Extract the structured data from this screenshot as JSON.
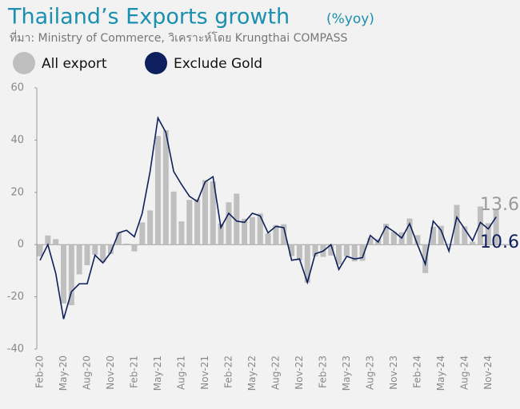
{
  "chart_data": {
    "type": "bar_line",
    "title": "Thailand’s Exports growth",
    "title_unit": "(%yoy)",
    "source": "ที่มา: Ministry of Commerce, วิเคราะห์โดย Krungthai COMPASS",
    "categories": [
      "Feb-20",
      null,
      null,
      "May-20",
      null,
      null,
      "Aug-20",
      null,
      null,
      "Nov-20",
      null,
      null,
      "Feb-21",
      null,
      null,
      "May-21",
      null,
      null,
      "Aug-21",
      null,
      null,
      "Nov-21",
      null,
      null,
      "Feb-22",
      null,
      null,
      "May-22",
      null,
      null,
      "Aug-22",
      null,
      null,
      "Nov-22",
      null,
      null,
      "Feb-23",
      null,
      null,
      "May-23",
      null,
      null,
      "Aug-23",
      null,
      null,
      "Nov-23",
      null,
      null,
      "Feb-24",
      null,
      null,
      "May-24",
      null,
      null,
      "Aug-24",
      null,
      null,
      "Nov-24",
      null
    ],
    "series": [
      {
        "name": "All export",
        "color": "#bfbfbf",
        "kind": "bar",
        "values": [
          -4.5,
          3.5,
          2.1,
          -22.5,
          -23.2,
          -11.4,
          -7.9,
          -3.9,
          -6.7,
          -3.6,
          4.7,
          0.4,
          -2.6,
          8.5,
          13.1,
          41.6,
          43.8,
          20.3,
          8.9,
          17.1,
          17.4,
          24.7,
          24.2,
          8.0,
          16.2,
          19.5,
          9.9,
          10.5,
          11.9,
          4.3,
          7.5,
          7.8,
          -4.4,
          -6.0,
          -14.6,
          -4.5,
          -4.7,
          -4.2,
          -7.6,
          -4.6,
          -6.4,
          -6.2,
          2.6,
          2.1,
          8.0,
          4.9,
          4.7,
          10.0,
          3.6,
          -10.9,
          6.8,
          7.2,
          0.3,
          15.2,
          7.0,
          1.1,
          14.6,
          8.2,
          13.6
        ]
      },
      {
        "name": "Exclude Gold",
        "color": "#0d1f5c",
        "kind": "line",
        "values": [
          -6,
          0,
          -11,
          -28.5,
          -18,
          -15,
          -15,
          -4,
          -7,
          -3,
          4.5,
          5.5,
          3,
          12,
          28,
          48.5,
          43,
          28,
          23,
          18.5,
          16.5,
          24,
          26,
          6.5,
          12,
          9,
          8.5,
          12,
          11,
          4.5,
          7,
          6.5,
          -6,
          -5.5,
          -14.5,
          -3.5,
          -2.5,
          0,
          -9.5,
          -4.5,
          -5.5,
          -5,
          3.5,
          1,
          7,
          5,
          2.5,
          8,
          0,
          -7.5,
          9,
          5.5,
          -2.5,
          10.5,
          6,
          1.5,
          8.5,
          6,
          10.6
        ]
      }
    ],
    "ylim": [
      -40,
      60
    ],
    "yticks": [
      -40,
      -20,
      0,
      20,
      40,
      60
    ],
    "grid": false
  }
}
